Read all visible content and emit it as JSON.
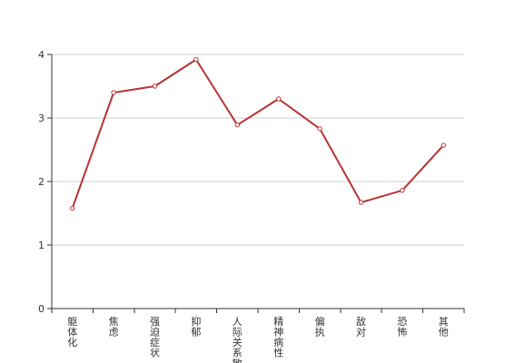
{
  "chart_data": {
    "type": "line",
    "categories": [
      "躯体化",
      "焦虑",
      "强迫症状",
      "抑郁",
      "人际关系敏感",
      "精神病性",
      "偏执",
      "敌对",
      "恐怖",
      "其他"
    ],
    "series": [
      {
        "values": [
          1.58,
          3.4,
          3.5,
          3.92,
          2.89,
          3.3,
          2.83,
          1.67,
          1.86,
          2.57
        ]
      }
    ],
    "yticks": [
      0,
      1,
      2,
      3,
      4
    ],
    "ylim": [
      0,
      4.0
    ],
    "grid": true,
    "legend": "none",
    "xlabel": "",
    "ylabel": "",
    "title": ""
  },
  "colors": {
    "line": "#b83232",
    "grid": "#cccccc",
    "axis": "#333333"
  }
}
